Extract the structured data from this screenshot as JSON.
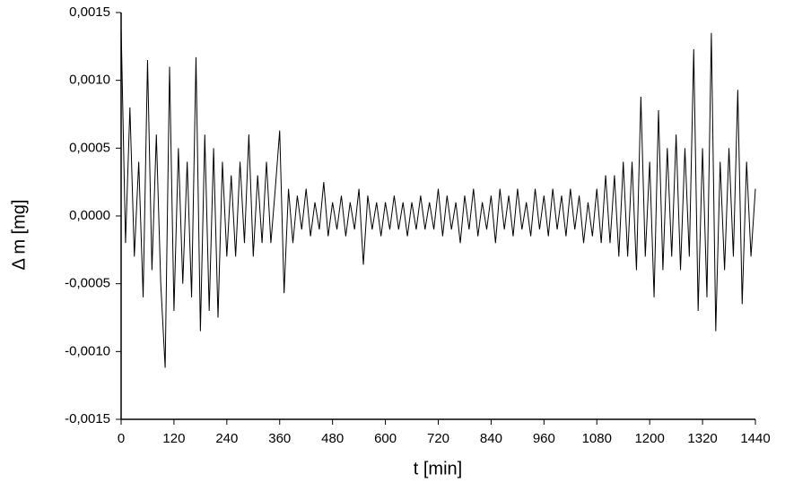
{
  "chart_data": {
    "type": "line",
    "ylabel": "Δ m [mg]",
    "xlabel": "t [min]",
    "color": "#000000",
    "grid": false,
    "xlim": [
      0,
      1440
    ],
    "xticks": [
      0,
      120,
      240,
      360,
      480,
      600,
      720,
      840,
      960,
      1080,
      1200,
      1320,
      1440
    ],
    "ylim": [
      -0.0015,
      0.0015
    ],
    "yticks": [
      {
        "value": -0.0015,
        "label": "-0,0015"
      },
      {
        "value": -0.001,
        "label": "-0,0010"
      },
      {
        "value": -0.0005,
        "label": "-0,0005"
      },
      {
        "value": 0,
        "label": "0,0000"
      },
      {
        "value": 0.0005,
        "label": "0,0005"
      },
      {
        "value": 0.001,
        "label": "0,0010"
      },
      {
        "value": 0.0015,
        "label": "0,0015"
      }
    ],
    "x": [
      0,
      10,
      20,
      30,
      40,
      50,
      60,
      70,
      80,
      90,
      100,
      110,
      120,
      130,
      140,
      150,
      160,
      170,
      180,
      190,
      200,
      210,
      220,
      230,
      240,
      250,
      260,
      270,
      280,
      290,
      300,
      310,
      320,
      330,
      340,
      350,
      360,
      370,
      380,
      390,
      400,
      410,
      420,
      430,
      440,
      450,
      460,
      470,
      480,
      490,
      500,
      510,
      520,
      530,
      540,
      550,
      560,
      570,
      580,
      590,
      600,
      610,
      620,
      630,
      640,
      650,
      660,
      670,
      680,
      690,
      700,
      710,
      720,
      730,
      740,
      750,
      760,
      770,
      780,
      790,
      800,
      810,
      820,
      830,
      840,
      850,
      860,
      870,
      880,
      890,
      900,
      910,
      920,
      930,
      940,
      950,
      960,
      970,
      980,
      990,
      1000,
      1010,
      1020,
      1030,
      1040,
      1050,
      1060,
      1070,
      1080,
      1090,
      1100,
      1110,
      1120,
      1130,
      1140,
      1150,
      1160,
      1170,
      1180,
      1190,
      1200,
      1210,
      1220,
      1230,
      1240,
      1250,
      1260,
      1270,
      1280,
      1290,
      1300,
      1310,
      1320,
      1330,
      1340,
      1350,
      1360,
      1370,
      1380,
      1390,
      1400,
      1410,
      1420,
      1430,
      1440
    ],
    "values": [
      0.0014,
      -0.0002,
      0.0008,
      -0.0003,
      0.0004,
      -0.0006,
      0.00115,
      -0.0004,
      0.0006,
      -0.0005,
      -0.00112,
      0.0011,
      -0.0007,
      0.0005,
      -0.0005,
      0.0004,
      -0.0006,
      0.00117,
      -0.00085,
      0.0006,
      -0.0007,
      0.0005,
      -0.00075,
      0.0004,
      -0.0003,
      0.0003,
      -0.0003,
      0.0004,
      -0.0002,
      0.0006,
      -0.0003,
      0.0003,
      -0.0002,
      0.0004,
      -0.0002,
      0.0002,
      0.00063,
      -0.00057,
      0.0002,
      -0.0002,
      0.00015,
      -0.0001,
      0.0002,
      -0.00015,
      0.0001,
      -0.0001,
      0.00025,
      -0.00015,
      0.0001,
      -0.0001,
      0.00015,
      -0.00015,
      0.0001,
      -0.0001,
      0.0002,
      -0.00036,
      0.00015,
      -0.0001,
      0.0001,
      -0.00015,
      0.0001,
      -0.0001,
      0.00015,
      -0.0001,
      0.0001,
      -0.00015,
      0.0001,
      -0.0001,
      0.00015,
      -0.0001,
      0.0001,
      -0.0001,
      0.0002,
      -0.00015,
      0.00015,
      -0.0001,
      0.0001,
      -0.0002,
      0.00015,
      -0.0001,
      0.0002,
      -0.00015,
      0.0001,
      -0.0001,
      0.00015,
      -0.0002,
      0.0002,
      -0.0001,
      0.00015,
      -0.00015,
      0.0002,
      -0.0001,
      0.0001,
      -0.00015,
      0.0002,
      -0.0001,
      0.00015,
      -0.00015,
      0.0002,
      -0.0001,
      0.00015,
      -0.00015,
      0.0002,
      -0.0001,
      0.00015,
      -0.0002,
      0.0001,
      -0.00015,
      0.0002,
      -0.0002,
      0.0003,
      -0.0002,
      0.0003,
      -0.0003,
      0.0004,
      -0.0003,
      0.0004,
      -0.0004,
      0.00088,
      -0.0003,
      0.0004,
      -0.0006,
      0.00078,
      -0.0004,
      0.0005,
      -0.0003,
      0.0006,
      -0.0004,
      0.0005,
      -0.0003,
      0.00123,
      -0.0007,
      0.0005,
      -0.0006,
      0.00135,
      -0.00085,
      0.0004,
      -0.0004,
      0.0005,
      -0.0003,
      0.00093,
      -0.00065,
      0.0004,
      -0.0003,
      0.0002
    ]
  }
}
